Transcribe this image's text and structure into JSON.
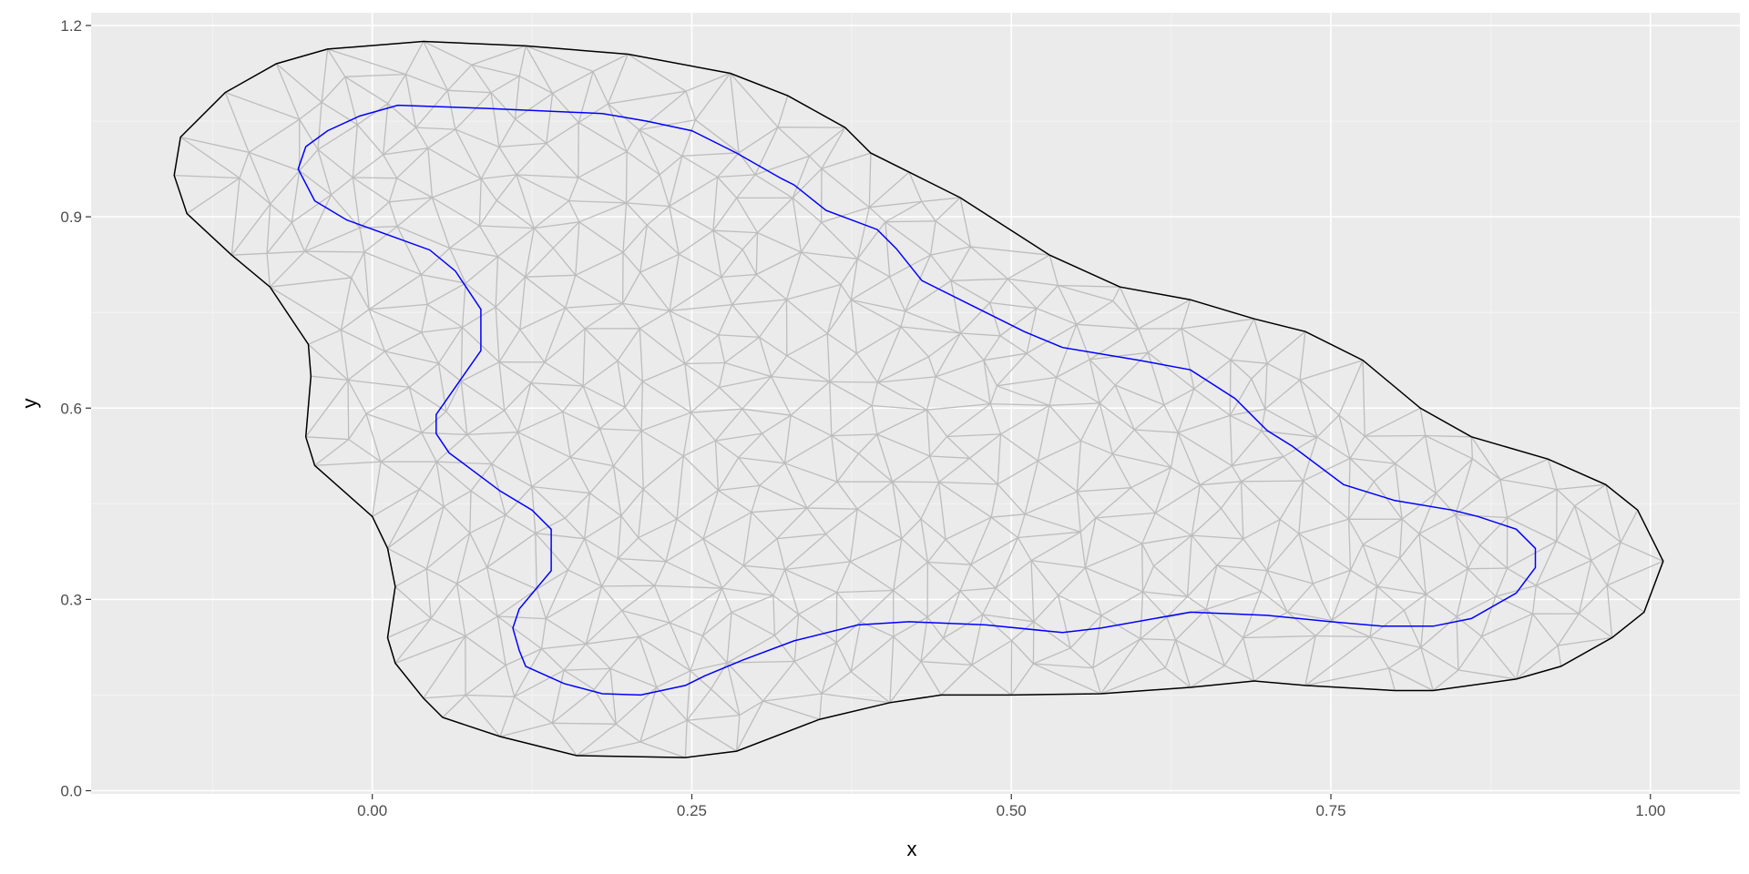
{
  "chart_data": {
    "type": "mesh",
    "title": "",
    "xlabel": "x",
    "ylabel": "y",
    "xlim": [
      -0.22,
      1.07
    ],
    "ylim": [
      -0.005,
      1.22
    ],
    "x_major_ticks": [
      0.0,
      0.25,
      0.5,
      0.75,
      1.0
    ],
    "y_major_ticks": [
      0.0,
      0.3,
      0.6,
      0.9,
      1.2
    ],
    "x_tick_labels": [
      "0.00",
      "0.25",
      "0.50",
      "0.75",
      "1.00"
    ],
    "y_tick_labels": [
      "0.0",
      "0.3",
      "0.6",
      "0.9",
      "1.2"
    ],
    "x_minor_ticks": [
      -0.125,
      0.125,
      0.375,
      0.625,
      0.875
    ],
    "y_minor_ticks": [
      0.15,
      0.45,
      0.75,
      1.05
    ],
    "grid": true,
    "colors": {
      "panel": "#ebebeb",
      "mesh": "#bdbdbd",
      "outer_boundary": "#000000",
      "inner_boundary": "#0000ff"
    },
    "outer_boundary": [
      [
        0.04,
        1.175
      ],
      [
        0.12,
        1.168
      ],
      [
        0.2,
        1.155
      ],
      [
        0.28,
        1.125
      ],
      [
        0.325,
        1.09
      ],
      [
        0.37,
        1.04
      ],
      [
        0.39,
        1.0
      ],
      [
        0.42,
        0.97
      ],
      [
        0.46,
        0.93
      ],
      [
        0.53,
        0.84
      ],
      [
        0.585,
        0.79
      ],
      [
        0.64,
        0.77
      ],
      [
        0.69,
        0.74
      ],
      [
        0.73,
        0.72
      ],
      [
        0.775,
        0.675
      ],
      [
        0.82,
        0.6
      ],
      [
        0.86,
        0.555
      ],
      [
        0.92,
        0.52
      ],
      [
        0.965,
        0.48
      ],
      [
        0.99,
        0.44
      ],
      [
        1.01,
        0.36
      ],
      [
        0.995,
        0.28
      ],
      [
        0.97,
        0.24
      ],
      [
        0.93,
        0.195
      ],
      [
        0.895,
        0.175
      ],
      [
        0.83,
        0.157
      ],
      [
        0.8,
        0.157
      ],
      [
        0.73,
        0.165
      ],
      [
        0.69,
        0.172
      ],
      [
        0.64,
        0.162
      ],
      [
        0.57,
        0.152
      ],
      [
        0.5,
        0.15
      ],
      [
        0.445,
        0.15
      ],
      [
        0.405,
        0.138
      ],
      [
        0.35,
        0.112
      ],
      [
        0.285,
        0.062
      ],
      [
        0.245,
        0.052
      ],
      [
        0.16,
        0.055
      ],
      [
        0.1,
        0.085
      ],
      [
        0.055,
        0.115
      ],
      [
        0.04,
        0.145
      ],
      [
        0.018,
        0.2
      ],
      [
        0.012,
        0.24
      ],
      [
        0.018,
        0.32
      ],
      [
        0.012,
        0.38
      ],
      [
        0.0,
        0.43
      ],
      [
        -0.045,
        0.51
      ],
      [
        -0.052,
        0.555
      ],
      [
        -0.048,
        0.65
      ],
      [
        -0.05,
        0.7
      ],
      [
        -0.08,
        0.79
      ],
      [
        -0.11,
        0.84
      ],
      [
        -0.145,
        0.905
      ],
      [
        -0.155,
        0.965
      ],
      [
        -0.15,
        1.025
      ],
      [
        -0.115,
        1.095
      ],
      [
        -0.075,
        1.14
      ],
      [
        -0.035,
        1.163
      ]
    ],
    "inner_boundary": [
      [
        0.02,
        1.075
      ],
      [
        0.09,
        1.07
      ],
      [
        0.18,
        1.062
      ],
      [
        0.215,
        1.05
      ],
      [
        0.25,
        1.035
      ],
      [
        0.285,
        1.0
      ],
      [
        0.32,
        0.96
      ],
      [
        0.33,
        0.95
      ],
      [
        0.355,
        0.91
      ],
      [
        0.395,
        0.88
      ],
      [
        0.41,
        0.85
      ],
      [
        0.43,
        0.8
      ],
      [
        0.47,
        0.76
      ],
      [
        0.51,
        0.72
      ],
      [
        0.54,
        0.695
      ],
      [
        0.6,
        0.675
      ],
      [
        0.64,
        0.66
      ],
      [
        0.675,
        0.615
      ],
      [
        0.7,
        0.565
      ],
      [
        0.72,
        0.54
      ],
      [
        0.76,
        0.48
      ],
      [
        0.8,
        0.455
      ],
      [
        0.845,
        0.44
      ],
      [
        0.865,
        0.43
      ],
      [
        0.895,
        0.41
      ],
      [
        0.91,
        0.38
      ],
      [
        0.91,
        0.35
      ],
      [
        0.895,
        0.31
      ],
      [
        0.86,
        0.27
      ],
      [
        0.83,
        0.258
      ],
      [
        0.79,
        0.258
      ],
      [
        0.75,
        0.265
      ],
      [
        0.7,
        0.275
      ],
      [
        0.64,
        0.28
      ],
      [
        0.57,
        0.255
      ],
      [
        0.54,
        0.248
      ],
      [
        0.48,
        0.26
      ],
      [
        0.42,
        0.265
      ],
      [
        0.38,
        0.26
      ],
      [
        0.33,
        0.235
      ],
      [
        0.29,
        0.205
      ],
      [
        0.26,
        0.18
      ],
      [
        0.245,
        0.165
      ],
      [
        0.21,
        0.15
      ],
      [
        0.18,
        0.152
      ],
      [
        0.15,
        0.168
      ],
      [
        0.12,
        0.195
      ],
      [
        0.115,
        0.22
      ],
      [
        0.11,
        0.255
      ],
      [
        0.115,
        0.285
      ],
      [
        0.14,
        0.345
      ],
      [
        0.14,
        0.41
      ],
      [
        0.125,
        0.44
      ],
      [
        0.1,
        0.47
      ],
      [
        0.06,
        0.53
      ],
      [
        0.05,
        0.56
      ],
      [
        0.05,
        0.59
      ],
      [
        0.085,
        0.69
      ],
      [
        0.085,
        0.755
      ],
      [
        0.065,
        0.815
      ],
      [
        0.045,
        0.848
      ],
      [
        -0.02,
        0.895
      ],
      [
        -0.045,
        0.925
      ],
      [
        -0.058,
        0.975
      ],
      [
        -0.052,
        1.01
      ],
      [
        -0.035,
        1.035
      ],
      [
        -0.01,
        1.058
      ]
    ]
  }
}
